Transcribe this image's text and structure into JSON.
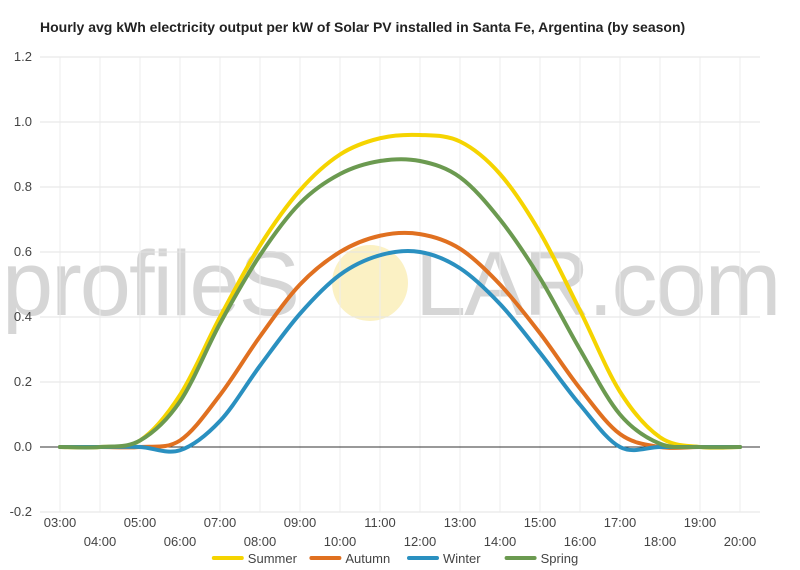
{
  "watermark": {
    "left_text": "profileS",
    "right_text": "LAR.com"
  },
  "chart_data": {
    "type": "line",
    "title": "Hourly avg kWh electricity output per kW of Solar PV installed in Santa Fe, Argentina (by season)",
    "xlabel": "",
    "ylabel": "",
    "ylim": [
      -0.2,
      1.2
    ],
    "yticks": [
      -0.2,
      0.0,
      0.2,
      0.4,
      0.6,
      0.8,
      1.0,
      1.2
    ],
    "ytick_labels": [
      "-0.2",
      "0.0",
      "0.2",
      "0.4",
      "0.6",
      "0.8",
      "1.0",
      "1.2"
    ],
    "xlim": [
      2.5,
      20.5
    ],
    "xticks": [
      3,
      4,
      5,
      6,
      7,
      8,
      9,
      10,
      11,
      12,
      13,
      14,
      15,
      16,
      17,
      18,
      19,
      20
    ],
    "xtick_labels": [
      "03:00",
      "04:00",
      "05:00",
      "06:00",
      "07:00",
      "08:00",
      "09:00",
      "10:00",
      "11:00",
      "12:00",
      "13:00",
      "14:00",
      "15:00",
      "16:00",
      "17:00",
      "18:00",
      "19:00",
      "20:00"
    ],
    "grid": true,
    "legend_position": "bottom",
    "x": [
      3,
      4,
      5,
      6,
      7,
      8,
      9,
      10,
      11,
      12,
      13,
      14,
      15,
      16,
      17,
      18,
      19,
      20
    ],
    "series": [
      {
        "name": "Summer",
        "color": "#f5d400",
        "values": [
          0.0,
          0.0,
          0.02,
          0.16,
          0.4,
          0.62,
          0.79,
          0.9,
          0.95,
          0.96,
          0.94,
          0.84,
          0.66,
          0.42,
          0.17,
          0.03,
          0.0,
          0.0
        ]
      },
      {
        "name": "Autumn",
        "color": "#e07020",
        "values": [
          0.0,
          0.0,
          0.0,
          0.02,
          0.16,
          0.34,
          0.5,
          0.6,
          0.65,
          0.655,
          0.61,
          0.5,
          0.35,
          0.18,
          0.04,
          0.0,
          0.0,
          0.0
        ]
      },
      {
        "name": "Winter",
        "color": "#2a90c0",
        "values": [
          0.0,
          0.0,
          0.0,
          -0.01,
          0.08,
          0.25,
          0.41,
          0.53,
          0.59,
          0.6,
          0.55,
          0.44,
          0.29,
          0.13,
          0.0,
          0.0,
          0.0,
          0.0
        ]
      },
      {
        "name": "Spring",
        "color": "#6b9a50",
        "values": [
          0.0,
          0.0,
          0.02,
          0.14,
          0.38,
          0.59,
          0.75,
          0.84,
          0.88,
          0.88,
          0.83,
          0.7,
          0.52,
          0.3,
          0.1,
          0.01,
          0.0,
          0.0
        ]
      }
    ]
  }
}
